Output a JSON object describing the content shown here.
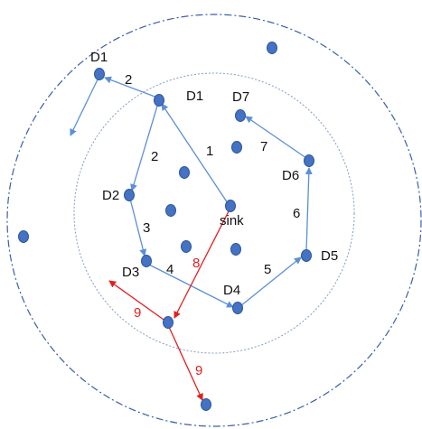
{
  "colors": {
    "node": "#4472c4",
    "node_stroke": "#2f5597",
    "arrow_blue": "#5b8fd6",
    "arrow_red": "#e02020",
    "label_black": "#111111",
    "label_red": "#e02020",
    "outer_circle": "#3a5fa8",
    "inner_circle": "#7f9cc7"
  },
  "labels": {
    "sink": "sink",
    "d1_outer": "D1",
    "d1_inner": "D1",
    "d2": "D2",
    "d3": "D3",
    "d4": "D4",
    "d5": "D5",
    "d6": "D6",
    "d7": "D7"
  },
  "hops": {
    "sink_to_d1": "1",
    "d1_to_d1": "2",
    "d1_to_d2": "2",
    "d2_to_d3": "3",
    "d3_to_d4": "4",
    "d4_to_d5": "5",
    "d5_to_d6": "6",
    "d6_to_d7": "7",
    "sink_red": "8",
    "red_left": "9",
    "red_down": "9"
  }
}
